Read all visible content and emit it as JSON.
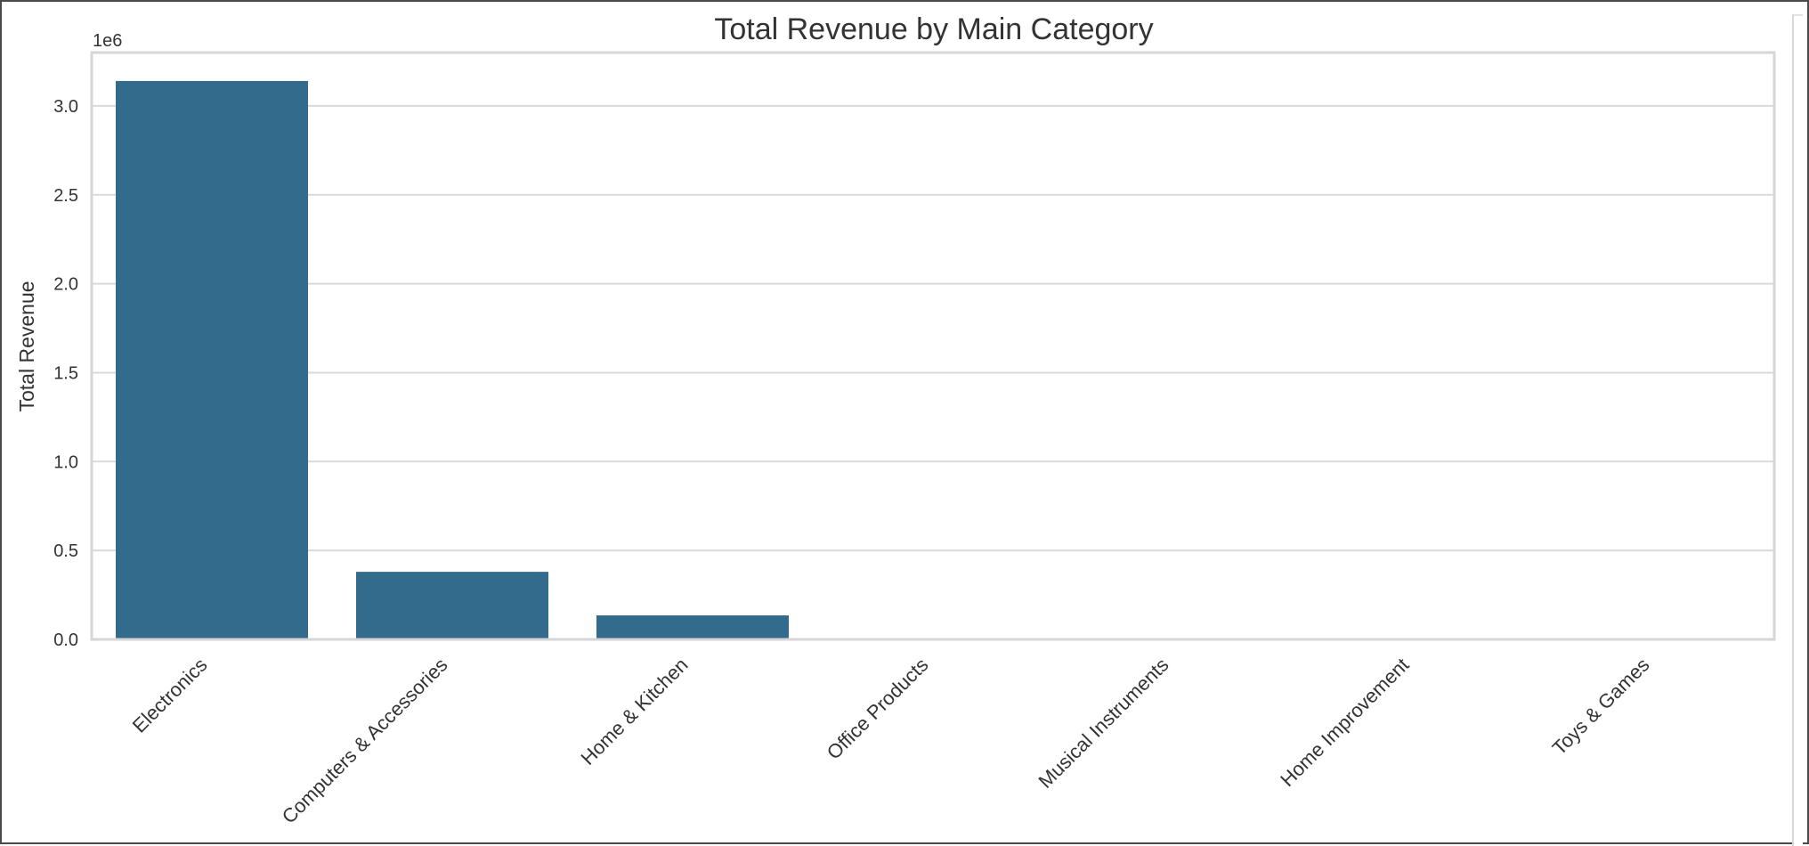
{
  "chart_data": {
    "type": "bar",
    "title": "Total Revenue by Main Category",
    "xlabel": "",
    "ylabel": "Total Revenue",
    "offset_label": "1e6",
    "categories": [
      "Electronics",
      "Computers & Accessories",
      "Home & Kitchen",
      "Office Products",
      "Musical Instruments",
      "Home Improvement",
      "Toys & Games"
    ],
    "values": [
      3140000,
      380000,
      135000,
      4000,
      300,
      150,
      100
    ],
    "ylim": [
      0,
      3300000
    ],
    "yticks": [
      {
        "value": 0,
        "label": "0.0"
      },
      {
        "value": 500000,
        "label": "0.5"
      },
      {
        "value": 1000000,
        "label": "1.0"
      },
      {
        "value": 1500000,
        "label": "1.5"
      },
      {
        "value": 2000000,
        "label": "2.0"
      },
      {
        "value": 2500000,
        "label": "2.5"
      },
      {
        "value": 3000000,
        "label": "3.0"
      }
    ],
    "grid": true,
    "legend": "none",
    "bar_color": "#336b8c",
    "grid_color": "#d9d9d9",
    "axes_edge_color": "#d6d6d6"
  }
}
